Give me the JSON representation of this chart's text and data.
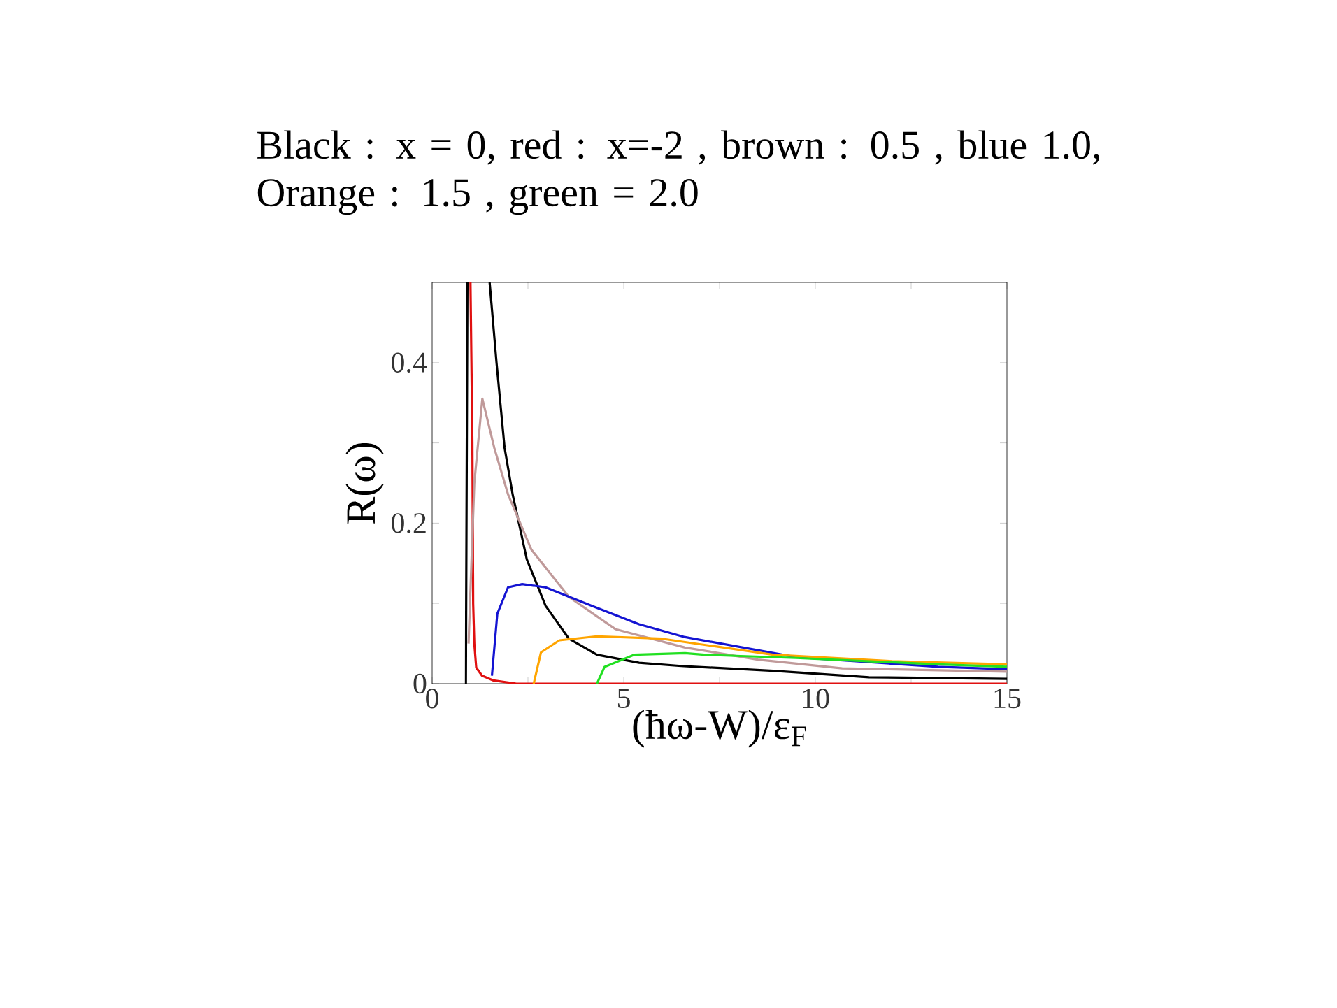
{
  "chart_data": {
    "type": "line",
    "title": "Black : x = 0,  red : x=-2 , brown : 0.5 , blue 1.0, Orange : 1.5  ,  green = 2.0",
    "xlabel": "(ħω-W)/ε$_{F}$",
    "ylabel": "R(ω)",
    "annotations": [
      "0"
    ],
    "xlim": [
      0,
      15
    ],
    "ylim": [
      0,
      0.5
    ],
    "xticks": [
      0,
      {
        "value": 2.5,
        "label": null
      },
      5,
      {
        "value": 7.5,
        "label": null
      },
      10,
      {
        "value": 12.5,
        "label": null
      },
      15
    ],
    "yticks": [
      0,
      {
        "value": 0.1,
        "label": null
      },
      0.2,
      {
        "value": 0.3,
        "label": null
      },
      0.4
    ],
    "grid": false,
    "legend": false,
    "marker": "none",
    "line_style": "solid",
    "series": [
      {
        "color": "#000000",
        "x": [
          1.5,
          1.68,
          1.89,
          2.1,
          2.47,
          2.96,
          3.57,
          4.3,
          5.4,
          6.5,
          8.9,
          11.4,
          15
        ],
        "values": [
          0.5,
          0.4,
          0.294,
          0.236,
          0.155,
          0.097,
          0.056,
          0.036,
          0.026,
          0.022,
          0.016,
          0.008,
          0.006
        ]
      },
      {
        "color": "#e01010",
        "x": [
          1.0,
          1.05,
          1.07,
          1.1,
          1.15,
          1.3,
          1.6,
          2.2,
          15
        ],
        "values": [
          0.5,
          0.3,
          0.1,
          0.05,
          0.02,
          0.01,
          0.004,
          0,
          0
        ]
      },
      {
        "color": "#c09a9a",
        "x": [
          0.95,
          1.1,
          1.31,
          1.62,
          1.98,
          2.59,
          3.57,
          4.78,
          6.6,
          8.5,
          10.7,
          15
        ],
        "values": [
          0.05,
          0.25,
          0.355,
          0.294,
          0.236,
          0.167,
          0.108,
          0.068,
          0.045,
          0.03,
          0.019,
          0.015
        ]
      },
      {
        "color": "#1414d2",
        "x": [
          1.56,
          1.7,
          1.98,
          2.35,
          2.96,
          4.17,
          5.4,
          6.6,
          9.5,
          13.2,
          15
        ],
        "values": [
          0.01,
          0.087,
          0.12,
          0.124,
          0.12,
          0.097,
          0.074,
          0.058,
          0.033,
          0.021,
          0.018
        ]
      },
      {
        "color": "#ffa500",
        "x": [
          2.65,
          2.84,
          3.32,
          4.3,
          6.0,
          8.9,
          12.0,
          15
        ],
        "values": [
          0,
          0.039,
          0.054,
          0.059,
          0.056,
          0.036,
          0.028,
          0.024
        ]
      },
      {
        "color": "#22e022",
        "x": [
          4.3,
          4.5,
          5.27,
          6.6,
          7.1,
          9.5,
          13.2,
          15
        ],
        "values": [
          0,
          0.021,
          0.036,
          0.038,
          0.036,
          0.032,
          0.024,
          0.021
        ]
      },
      {
        "color": "#000000",
        "x": [
          0.88,
          0.9,
          0.92
        ],
        "values": [
          0,
          0.25,
          0.5
        ]
      }
    ]
  }
}
